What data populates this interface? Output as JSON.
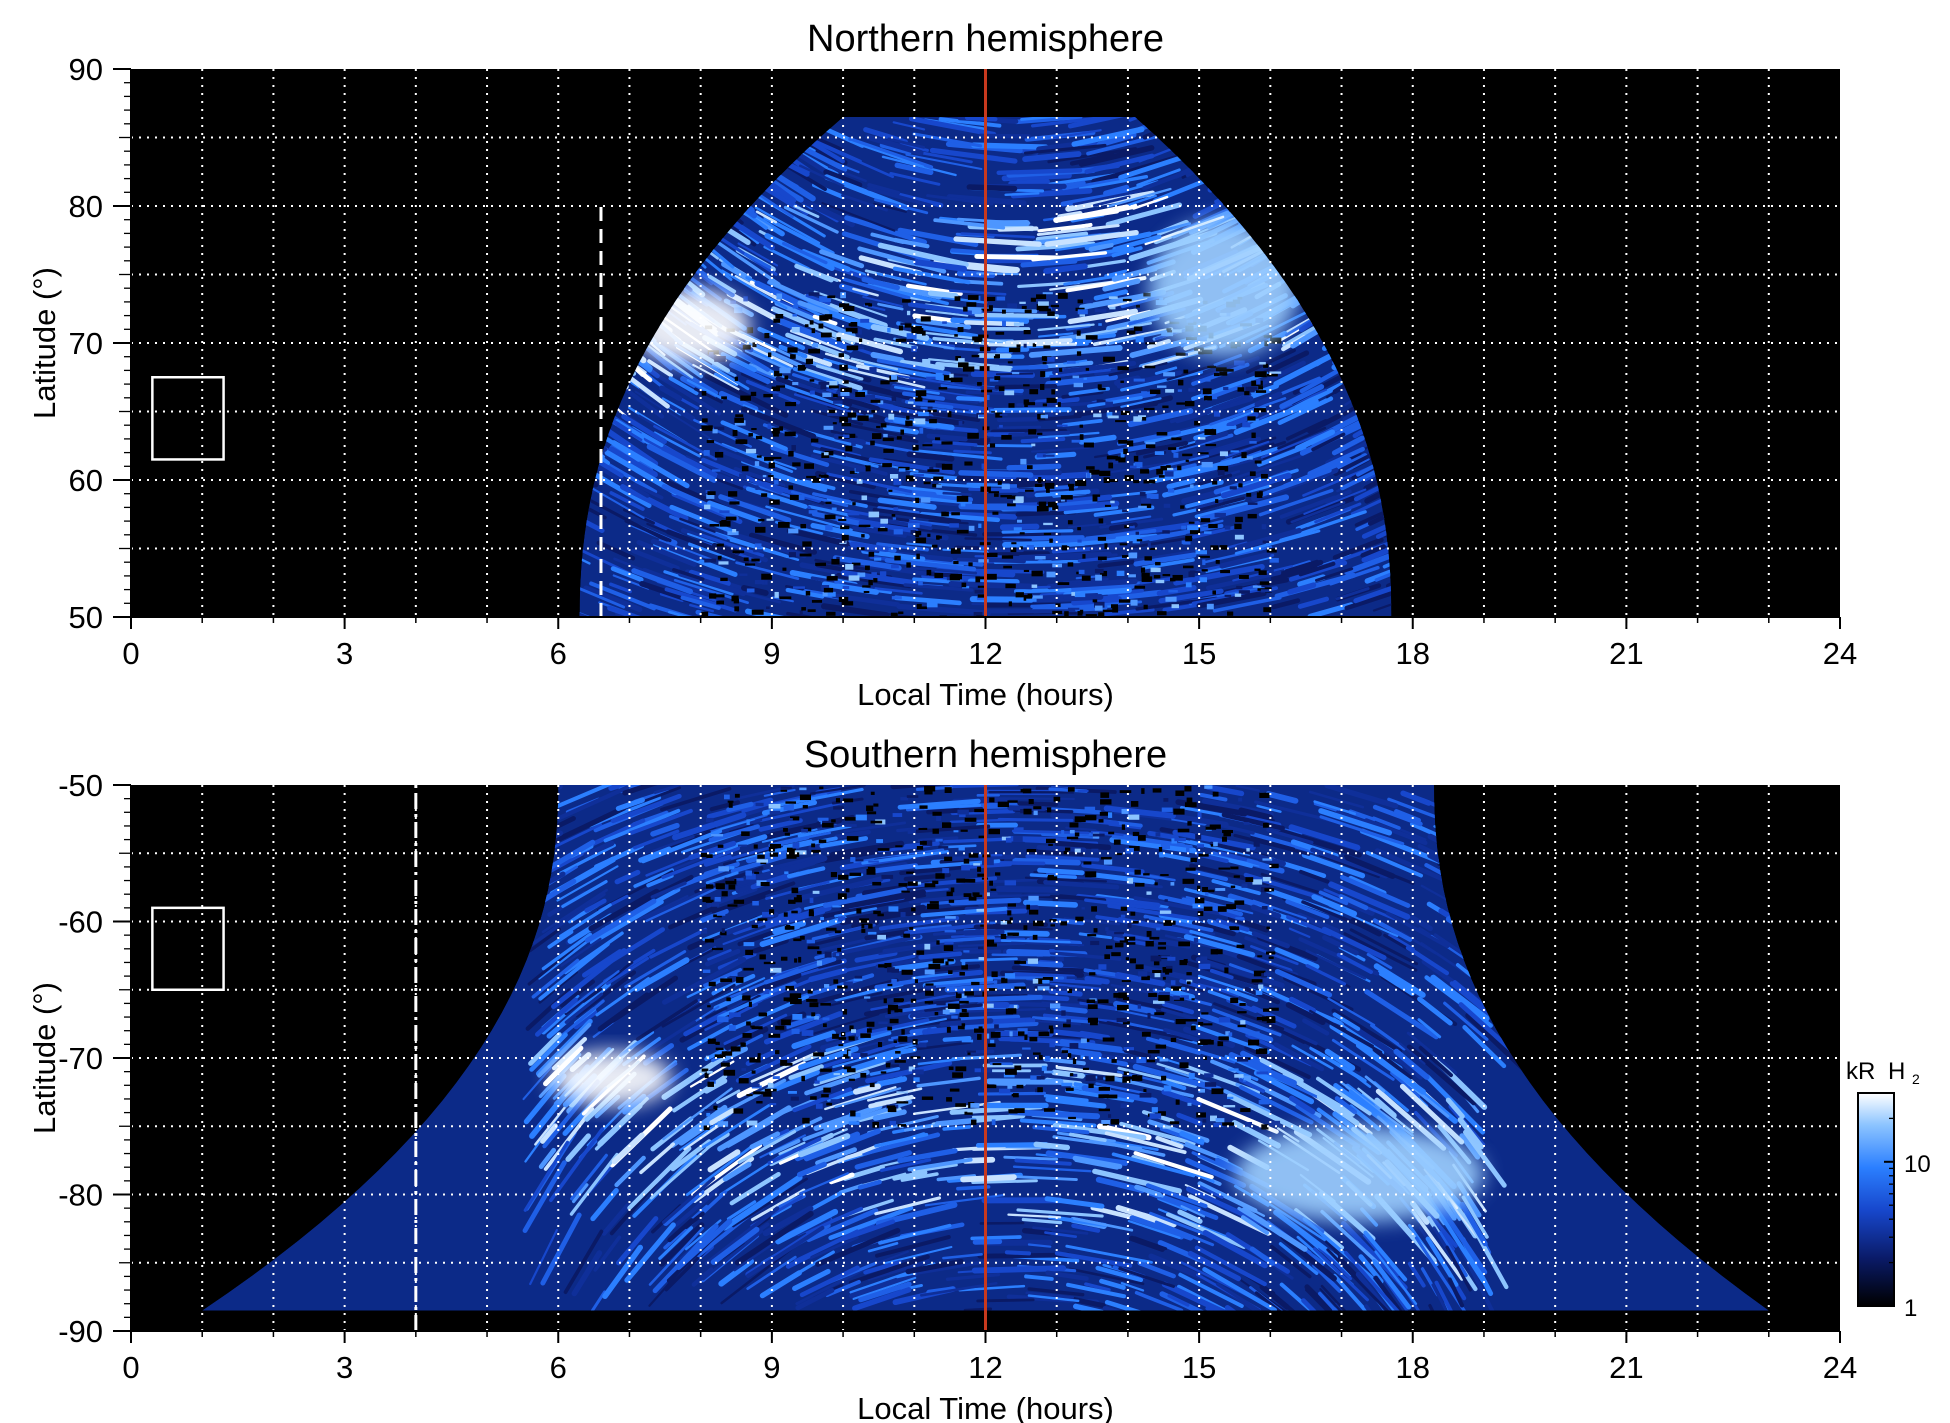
{
  "chart_data": [
    {
      "type": "heatmap",
      "title": "Northern hemisphere",
      "xlabel": "Local Time (hours)",
      "ylabel": "Latitude (°)",
      "xlim": [
        0,
        24
      ],
      "ylim": [
        50,
        90
      ],
      "xticks": [
        "0",
        "3",
        "6",
        "9",
        "12",
        "15",
        "18",
        "21",
        "24"
      ],
      "yticks": [
        "50",
        "60",
        "70",
        "80",
        "90"
      ],
      "grid": true,
      "grid_x_step_hours": 1,
      "grid_y_step_deg": 5,
      "noon_line_lt": 12,
      "noon_line_color": "#c8391e",
      "dashed_marker_lt": 6.6,
      "dashed_marker_lat_range": [
        50,
        80
      ],
      "box_marker": {
        "lt": [
          0.3,
          1.3
        ],
        "lat": [
          61.5,
          67.5
        ]
      },
      "coverage": {
        "lt_at_equatorward_edge": [
          6.3,
          17.7
        ],
        "lt_at_poleward_edge": [
          10.0,
          14.1
        ],
        "lat_max": 86.5
      },
      "bright_regions": [
        {
          "lt_range": [
            7.0,
            8.7
          ],
          "lat_range": [
            68.5,
            74.0
          ],
          "level_kR": 30
        },
        {
          "lt_range": [
            14.3,
            16.4
          ],
          "lat_range": [
            69.0,
            79.0
          ],
          "level_kR": 15
        }
      ]
    },
    {
      "type": "heatmap",
      "title": "Southern hemisphere",
      "xlabel": "Local Time (hours)",
      "ylabel": "Latitude (°)",
      "xlim": [
        0,
        24
      ],
      "ylim": [
        -90,
        -50
      ],
      "xticks": [
        "0",
        "3",
        "6",
        "9",
        "12",
        "15",
        "18",
        "21",
        "24"
      ],
      "yticks": [
        "-90",
        "-80",
        "-70",
        "-60",
        "-50"
      ],
      "grid": true,
      "grid_x_step_hours": 1,
      "grid_y_step_deg": 5,
      "noon_line_lt": 12,
      "noon_line_color": "#c8391e",
      "dashed_marker_lt": 4.0,
      "dashed_marker_lat_range": [
        -90,
        -50
      ],
      "box_marker": {
        "lt": [
          0.3,
          1.3
        ],
        "lat": [
          -65,
          -59
        ]
      },
      "coverage": {
        "lt_at_equatorward_edge": [
          6.0,
          18.3
        ],
        "lt_at_poleward_edge": [
          1.0,
          23.0
        ],
        "lat_min": -88.5
      },
      "bright_regions": [
        {
          "lt_range": [
            5.9,
            7.6
          ],
          "lat_range": [
            -73.5,
            -69.5
          ],
          "level_kR": 30
        },
        {
          "lt_range": [
            15.5,
            19.0
          ],
          "lat_range": [
            -82.0,
            -75.0
          ],
          "level_kR": 15
        }
      ]
    }
  ],
  "colorbar": {
    "label_main": "kR",
    "label_species": "H",
    "label_subscript": "2",
    "scale": "log",
    "range_kR": [
      1,
      30
    ],
    "tick_labels": [
      "1",
      "10"
    ],
    "colors": [
      "#000000",
      "#0a1a66",
      "#1747cc",
      "#2b7fff",
      "#8cc4ff",
      "#ffffff"
    ]
  }
}
